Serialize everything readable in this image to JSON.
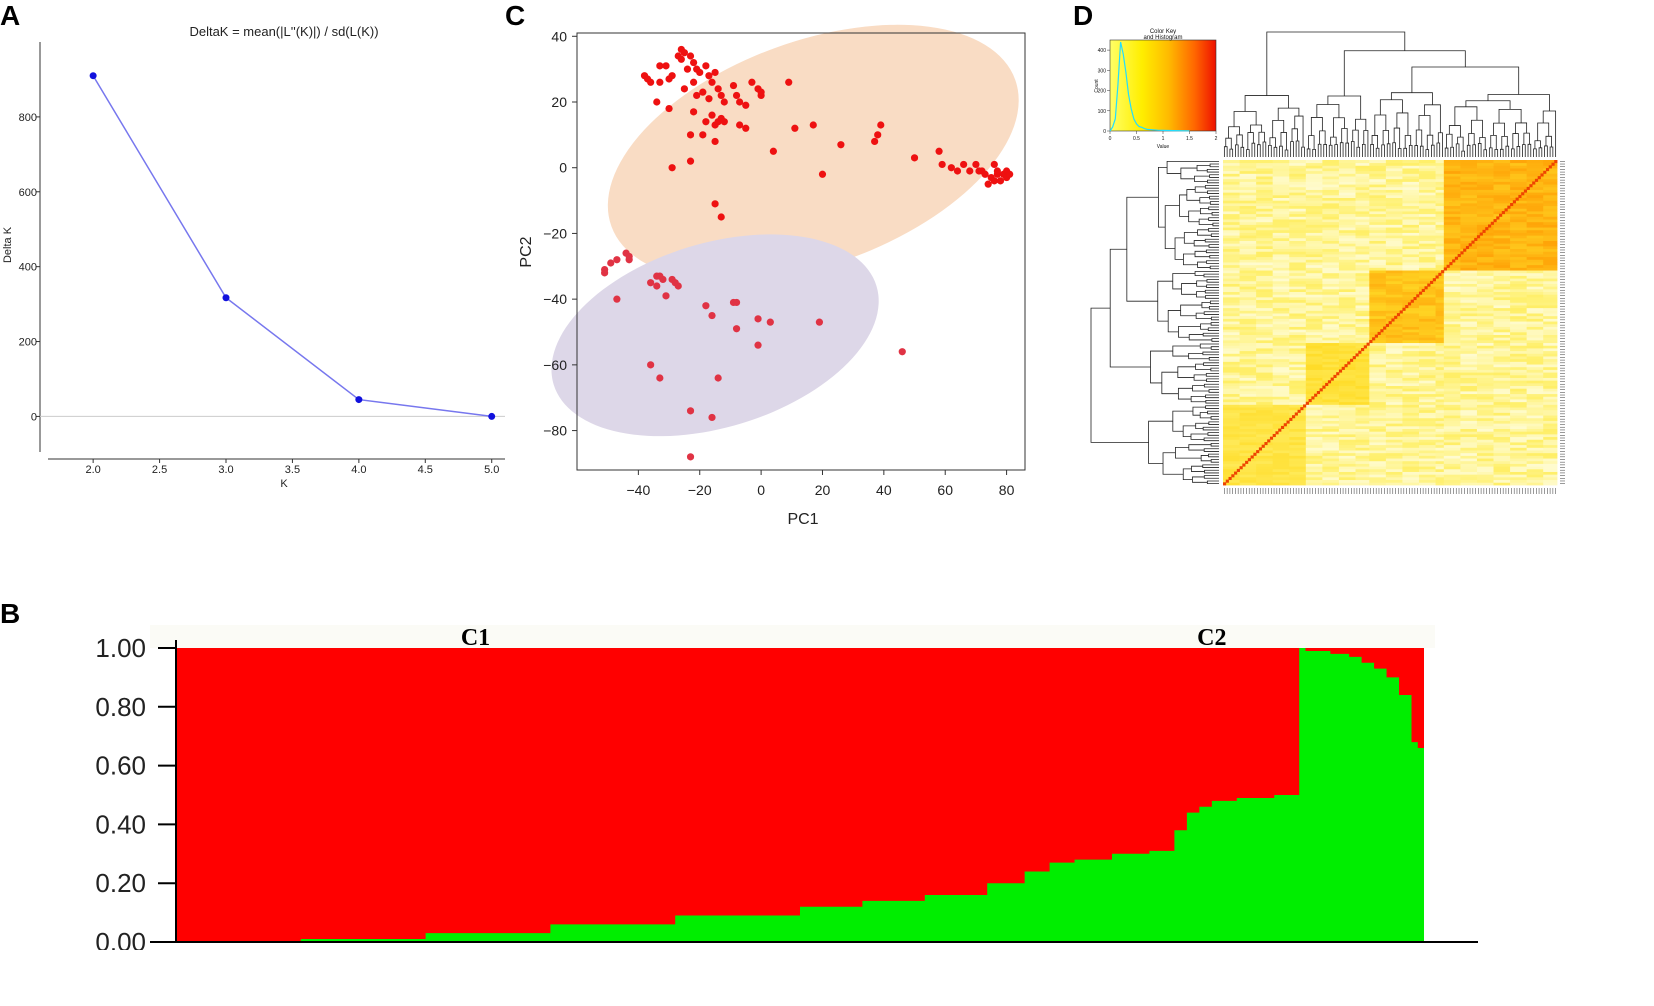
{
  "panels": {
    "a": "A",
    "b": "B",
    "c": "C",
    "d": "D"
  },
  "chart_data": [
    {
      "id": "A",
      "type": "line",
      "title": "DeltaK = mean(|L''(K)|) / sd(L(K))",
      "xlabel": "K",
      "ylabel": "Delta K",
      "x": [
        2.0,
        3.0,
        4.0,
        5.0
      ],
      "y": [
        910,
        317,
        45,
        0
      ],
      "xlim": [
        1.6,
        5.1
      ],
      "ylim": [
        -95,
        1000
      ],
      "xticks": [
        "2.0",
        "2.5",
        "3.0",
        "3.5",
        "4.0",
        "4.5",
        "5.0"
      ],
      "xtick_values": [
        2.0,
        2.5,
        3.0,
        3.5,
        4.0,
        4.5,
        5.0
      ],
      "yticks": [
        "0",
        "200",
        "400",
        "600",
        "800"
      ],
      "ytick_values": [
        0,
        200,
        400,
        600,
        800
      ],
      "line_color": "#7777ee",
      "point_color": "#1111dd"
    },
    {
      "id": "C",
      "type": "scatter",
      "xlabel": "PC1",
      "ylabel": "PC2",
      "xlim": [
        -60,
        86
      ],
      "ylim": [
        -92,
        41
      ],
      "xticks": [
        "−40",
        "−20",
        "0",
        "20",
        "40",
        "60",
        "80"
      ],
      "xtick_values": [
        -40,
        -20,
        0,
        20,
        40,
        60,
        80
      ],
      "yticks": [
        "40",
        "20",
        "0",
        "−20",
        "−40",
        "−60",
        "−80"
      ],
      "ytick_values": [
        40,
        20,
        0,
        -20,
        -40,
        -60,
        -80
      ],
      "ellipses": [
        {
          "name": "C1",
          "cx": 17,
          "cy": 4.5,
          "rx": 70,
          "ry": 34,
          "angle": -20,
          "color": "#f9dcc4"
        },
        {
          "name": "C2",
          "cx": -15,
          "cy": -51,
          "rx": 55,
          "ry": 28,
          "angle": -17,
          "color": "#ddd7e8"
        }
      ],
      "series": [
        {
          "name": "C1",
          "color": "#ee1111",
          "points": [
            [
              -38,
              28
            ],
            [
              -37,
              27
            ],
            [
              -36,
              26
            ],
            [
              -33,
              31
            ],
            [
              -31,
              31
            ],
            [
              -30,
              27
            ],
            [
              -29,
              28
            ],
            [
              -27,
              34
            ],
            [
              -26,
              36
            ],
            [
              -26,
              33
            ],
            [
              -25,
              35
            ],
            [
              -24,
              30
            ],
            [
              -23,
              34
            ],
            [
              -22,
              32
            ],
            [
              -21,
              30
            ],
            [
              -20,
              29
            ],
            [
              -22,
              26
            ],
            [
              -25,
              24
            ],
            [
              -18,
              31
            ],
            [
              -17,
              28
            ],
            [
              -16,
              26
            ],
            [
              -15,
              29
            ],
            [
              -19,
              23
            ],
            [
              -21,
              22
            ],
            [
              -17,
              21
            ],
            [
              -14,
              24
            ],
            [
              -13,
              22
            ],
            [
              -12,
              20
            ],
            [
              -9,
              25
            ],
            [
              -8,
              22
            ],
            [
              -7,
              20
            ],
            [
              -5,
              19
            ],
            [
              -3,
              26
            ],
            [
              -1,
              24
            ],
            [
              0,
              22
            ],
            [
              0,
              23
            ],
            [
              -16,
              16
            ],
            [
              -18,
              14
            ],
            [
              -15,
              13
            ],
            [
              -14,
              14
            ],
            [
              -13,
              15
            ],
            [
              -12,
              14
            ],
            [
              -22,
              17
            ],
            [
              -23,
              10
            ],
            [
              -15,
              8
            ],
            [
              -19,
              10
            ],
            [
              -33,
              26
            ],
            [
              -34,
              20
            ],
            [
              -30,
              18
            ],
            [
              -7,
              13
            ],
            [
              -5,
              12
            ],
            [
              4,
              5
            ],
            [
              9,
              26
            ],
            [
              11,
              12
            ],
            [
              17,
              13
            ],
            [
              20,
              -2
            ],
            [
              26,
              7
            ],
            [
              37,
              8
            ],
            [
              38,
              10
            ],
            [
              39,
              13
            ],
            [
              50,
              3
            ],
            [
              58,
              5
            ],
            [
              59,
              1
            ],
            [
              62,
              0
            ],
            [
              64,
              -1
            ],
            [
              66,
              1
            ],
            [
              68,
              -1
            ],
            [
              70,
              1
            ],
            [
              71,
              -1
            ],
            [
              72,
              -1
            ],
            [
              73,
              -2
            ],
            [
              74,
              -5
            ],
            [
              75,
              -3
            ],
            [
              76,
              -4
            ],
            [
              76,
              1
            ],
            [
              77,
              -2
            ],
            [
              78,
              -4
            ],
            [
              79,
              -2
            ],
            [
              80,
              -3
            ],
            [
              80,
              -1
            ],
            [
              81,
              -2
            ],
            [
              77,
              -1
            ],
            [
              -23,
              2
            ],
            [
              -29,
              0
            ],
            [
              -15,
              -11
            ],
            [
              -13,
              -15
            ]
          ]
        },
        {
          "name": "C2",
          "color": "#e03344",
          "points": [
            [
              -51,
              -31
            ],
            [
              -51,
              -32
            ],
            [
              -49,
              -29
            ],
            [
              -47,
              -28
            ],
            [
              -44,
              -26
            ],
            [
              -43,
              -28
            ],
            [
              -43,
              -27
            ],
            [
              -47,
              -40
            ],
            [
              -36,
              -35
            ],
            [
              -34,
              -33
            ],
            [
              -33,
              -33
            ],
            [
              -34,
              -36
            ],
            [
              -32,
              -34
            ],
            [
              -31,
              -39
            ],
            [
              -29,
              -34
            ],
            [
              -28,
              -35
            ],
            [
              -27,
              -36
            ],
            [
              -18,
              -42
            ],
            [
              -16,
              -45
            ],
            [
              -9,
              -41
            ],
            [
              -8,
              -41
            ],
            [
              -8,
              -49
            ],
            [
              -1,
              -46
            ],
            [
              3,
              -47
            ],
            [
              -1,
              -54
            ],
            [
              -36,
              -60
            ],
            [
              -33,
              -64
            ],
            [
              -14,
              -64
            ],
            [
              19,
              -47
            ],
            [
              46,
              -56
            ],
            [
              -23,
              -74
            ],
            [
              -16,
              -76
            ],
            [
              -23,
              -88
            ]
          ]
        }
      ]
    },
    {
      "id": "D",
      "type": "heatmap",
      "color_key_title": "Color Key",
      "color_key_subtitle": "and Histogram",
      "color_key_xlabel": "Value",
      "color_key_ylabel": "Count",
      "color_key_xticks": [
        "0",
        "0.5",
        "1",
        "1.5",
        "2"
      ],
      "color_key_xtick_values": [
        0,
        0.5,
        1,
        1.5,
        2
      ],
      "color_key_yticks": [
        "0",
        "100",
        "200",
        "300",
        "400"
      ],
      "color_key_ytick_values": [
        0,
        100,
        200,
        300,
        400
      ],
      "histogram": {
        "bins": [
          0.05,
          0.1,
          0.15,
          0.2,
          0.25,
          0.3,
          0.35,
          0.4,
          0.45,
          0.5,
          0.55,
          0.6,
          0.65,
          0.7,
          0.8,
          0.9,
          1.0,
          1.2,
          1.5
        ],
        "counts": [
          20,
          60,
          230,
          440,
          380,
          290,
          180,
          110,
          60,
          35,
          22,
          18,
          12,
          8,
          6,
          4,
          3,
          2,
          1
        ]
      },
      "colors": [
        "#ffffee",
        "#ffee55",
        "#ffcc00",
        "#ff8800",
        "#ee3300"
      ],
      "n_samples": 121,
      "clusters": [
        {
          "start": 0,
          "end": 30,
          "level": 0.55
        },
        {
          "start": 30,
          "end": 53,
          "level": 0.5
        },
        {
          "start": 53,
          "end": 80,
          "level": 0.35
        },
        {
          "start": 80,
          "end": 121,
          "level": 0.3
        }
      ]
    },
    {
      "id": "B",
      "type": "area",
      "xlabel": "",
      "ylabel": "",
      "ylim": [
        0,
        1
      ],
      "yticks": [
        "1.00",
        "0.80",
        "0.60",
        "0.40",
        "0.20",
        "0.00"
      ],
      "ytick_values": [
        1.0,
        0.8,
        0.6,
        0.4,
        0.2,
        0.0
      ],
      "annotations": [
        "C1",
        "C2"
      ],
      "series": [
        {
          "name": "green",
          "color": "#00ee00",
          "x": [
            0,
            0.08,
            0.1,
            0.2,
            0.3,
            0.4,
            0.5,
            0.55,
            0.6,
            0.65,
            0.68,
            0.7,
            0.72,
            0.75,
            0.78,
            0.8,
            0.81,
            0.82,
            0.83,
            0.85,
            0.88,
            0.9,
            0.905,
            0.92,
            0.925,
            0.93,
            0.94,
            0.95,
            0.96,
            0.97,
            0.98,
            0.99,
            0.995,
            1.0
          ],
          "y": [
            0,
            0,
            0.01,
            0.03,
            0.06,
            0.09,
            0.12,
            0.14,
            0.16,
            0.2,
            0.24,
            0.27,
            0.28,
            0.3,
            0.31,
            0.38,
            0.44,
            0.46,
            0.48,
            0.49,
            0.5,
            1.0,
            0.99,
            0.99,
            0.98,
            0.98,
            0.97,
            0.95,
            0.93,
            0.9,
            0.84,
            0.68,
            0.66,
            0.52
          ]
        },
        {
          "name": "red",
          "color": "#ff0000",
          "fill": "remainder"
        }
      ],
      "annotation_x": [
        0.24,
        0.83
      ]
    }
  ]
}
